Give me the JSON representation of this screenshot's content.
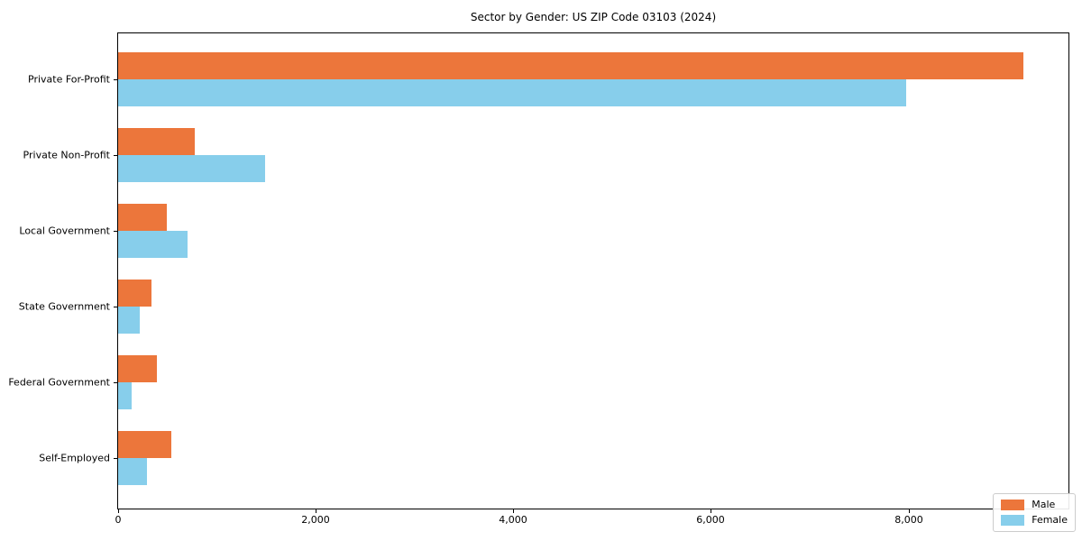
{
  "chart_data": {
    "type": "bar",
    "orientation": "horizontal",
    "title": "Sector by Gender: US ZIP Code 03103 (2024)",
    "categories": [
      "Private For-Profit",
      "Private Non-Profit",
      "Local Government",
      "State Government",
      "Federal Government",
      "Self-Employed"
    ],
    "series": [
      {
        "name": "Male",
        "color": "#EC763B",
        "values": [
          9160,
          780,
          490,
          340,
          395,
          540
        ]
      },
      {
        "name": "Female",
        "color": "#87CEEB",
        "values": [
          7980,
          1490,
          700,
          215,
          135,
          290
        ]
      }
    ],
    "xlim": [
      0,
      9620
    ],
    "xticks": [
      0,
      2000,
      4000,
      6000,
      8000
    ],
    "xtick_labels": [
      "0",
      "2,000",
      "4,000",
      "6,000",
      "8,000"
    ],
    "xlabel": "",
    "ylabel": "",
    "grid": false,
    "legend_position": "lower right",
    "axis_color": "#000000",
    "background_color": "#ffffff"
  }
}
